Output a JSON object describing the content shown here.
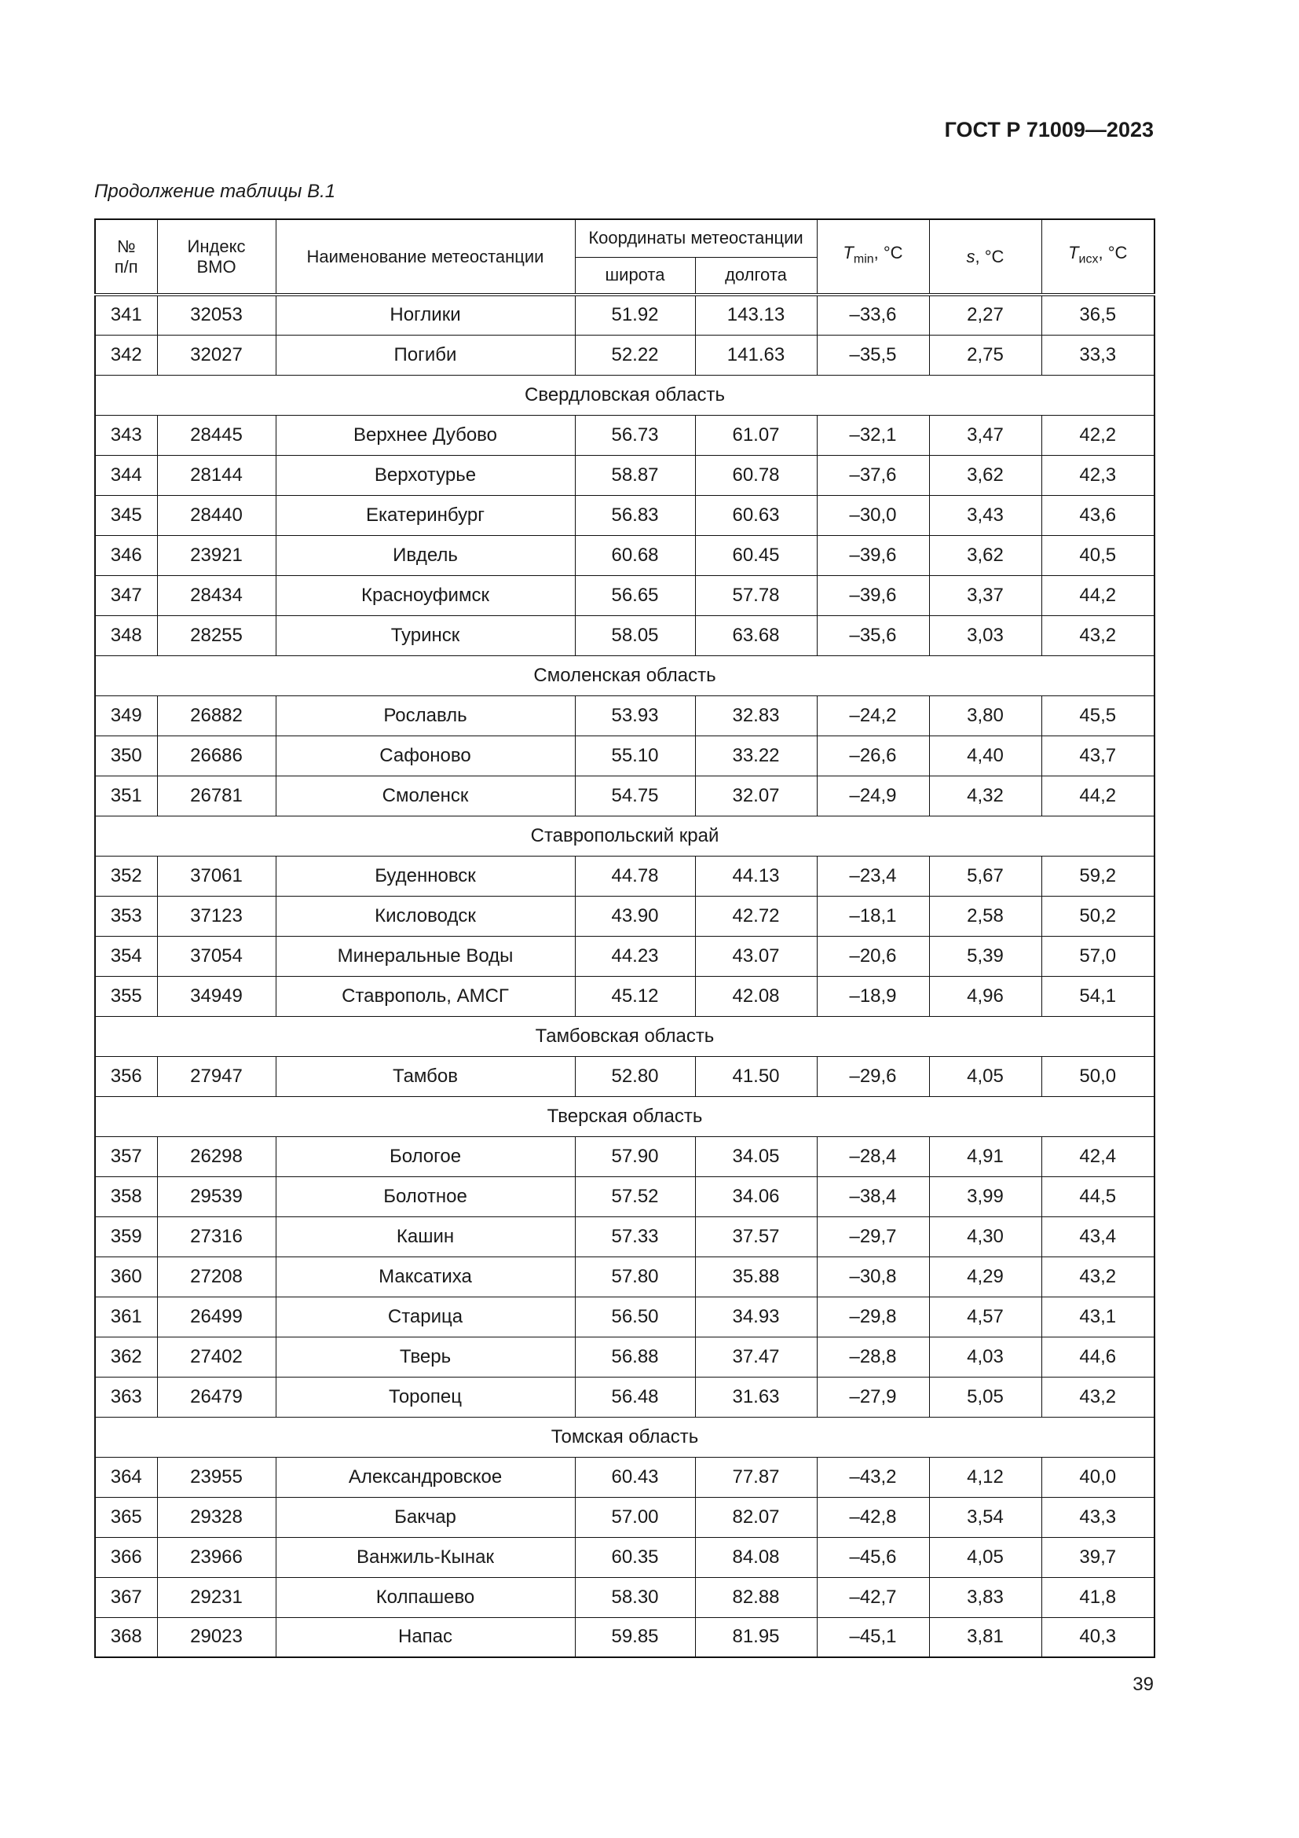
{
  "header": {
    "doc_code": "ГОСТ Р 71009—2023"
  },
  "caption": "Продолжение таблицы В.1",
  "table": {
    "columns": {
      "number": "№\nп/п",
      "index": "Индекс\nВМО",
      "name": "Наименование метеостанции",
      "coords": "Координаты метеостанции",
      "lat": "широта",
      "lon": "долгота",
      "tmin": {
        "symbol": "T",
        "sub": "min",
        "unit": ", °C"
      },
      "s": {
        "symbol": "s",
        "unit": ", °C"
      },
      "tisx": {
        "symbol": "T",
        "sub": "исх",
        "unit": ", °C"
      }
    },
    "rows": [
      [
        "341",
        "32053",
        "Ноглики",
        "51.92",
        "143.13",
        "–33,6",
        "2,27",
        "36,5"
      ],
      [
        "342",
        "32027",
        "Погиби",
        "52.22",
        "141.63",
        "–35,5",
        "2,75",
        "33,3"
      ],
      {
        "region": "Свердловская область"
      },
      [
        "343",
        "28445",
        "Верхнее Дубово",
        "56.73",
        "61.07",
        "–32,1",
        "3,47",
        "42,2"
      ],
      [
        "344",
        "28144",
        "Верхотурье",
        "58.87",
        "60.78",
        "–37,6",
        "3,62",
        "42,3"
      ],
      [
        "345",
        "28440",
        "Екатеринбург",
        "56.83",
        "60.63",
        "–30,0",
        "3,43",
        "43,6"
      ],
      [
        "346",
        "23921",
        "Ивдель",
        "60.68",
        "60.45",
        "–39,6",
        "3,62",
        "40,5"
      ],
      [
        "347",
        "28434",
        "Красноуфимск",
        "56.65",
        "57.78",
        "–39,6",
        "3,37",
        "44,2"
      ],
      [
        "348",
        "28255",
        "Туринск",
        "58.05",
        "63.68",
        "–35,6",
        "3,03",
        "43,2"
      ],
      {
        "region": "Смоленская область"
      },
      [
        "349",
        "26882",
        "Рославль",
        "53.93",
        "32.83",
        "–24,2",
        "3,80",
        "45,5"
      ],
      [
        "350",
        "26686",
        "Сафоново",
        "55.10",
        "33.22",
        "–26,6",
        "4,40",
        "43,7"
      ],
      [
        "351",
        "26781",
        "Смоленск",
        "54.75",
        "32.07",
        "–24,9",
        "4,32",
        "44,2"
      ],
      {
        "region": "Ставропольский край"
      },
      [
        "352",
        "37061",
        "Буденновск",
        "44.78",
        "44.13",
        "–23,4",
        "5,67",
        "59,2"
      ],
      [
        "353",
        "37123",
        "Кисловодск",
        "43.90",
        "42.72",
        "–18,1",
        "2,58",
        "50,2"
      ],
      [
        "354",
        "37054",
        "Минеральные Воды",
        "44.23",
        "43.07",
        "–20,6",
        "5,39",
        "57,0"
      ],
      [
        "355",
        "34949",
        "Ставрополь, АМСГ",
        "45.12",
        "42.08",
        "–18,9",
        "4,96",
        "54,1"
      ],
      {
        "region": "Тамбовская область"
      },
      [
        "356",
        "27947",
        "Тамбов",
        "52.80",
        "41.50",
        "–29,6",
        "4,05",
        "50,0"
      ],
      {
        "region": "Тверская область"
      },
      [
        "357",
        "26298",
        "Бологое",
        "57.90",
        "34.05",
        "–28,4",
        "4,91",
        "42,4"
      ],
      [
        "358",
        "29539",
        "Болотное",
        "57.52",
        "34.06",
        "–38,4",
        "3,99",
        "44,5"
      ],
      [
        "359",
        "27316",
        "Кашин",
        "57.33",
        "37.57",
        "–29,7",
        "4,30",
        "43,4"
      ],
      [
        "360",
        "27208",
        "Максатиха",
        "57.80",
        "35.88",
        "–30,8",
        "4,29",
        "43,2"
      ],
      [
        "361",
        "26499",
        "Старица",
        "56.50",
        "34.93",
        "–29,8",
        "4,57",
        "43,1"
      ],
      [
        "362",
        "27402",
        "Тверь",
        "56.88",
        "37.47",
        "–28,8",
        "4,03",
        "44,6"
      ],
      [
        "363",
        "26479",
        "Торопец",
        "56.48",
        "31.63",
        "–27,9",
        "5,05",
        "43,2"
      ],
      {
        "region": "Томская область"
      },
      [
        "364",
        "23955",
        "Александровское",
        "60.43",
        "77.87",
        "–43,2",
        "4,12",
        "40,0"
      ],
      [
        "365",
        "29328",
        "Бакчар",
        "57.00",
        "82.07",
        "–42,8",
        "3,54",
        "43,3"
      ],
      [
        "366",
        "23966",
        "Ванжиль-Кынак",
        "60.35",
        "84.08",
        "–45,6",
        "4,05",
        "39,7"
      ],
      [
        "367",
        "29231",
        "Колпашево",
        "58.30",
        "82.88",
        "–42,7",
        "3,83",
        "41,8"
      ],
      [
        "368",
        "29023",
        "Напас",
        "59.85",
        "81.95",
        "–45,1",
        "3,81",
        "40,3"
      ]
    ]
  },
  "page_number": "39"
}
